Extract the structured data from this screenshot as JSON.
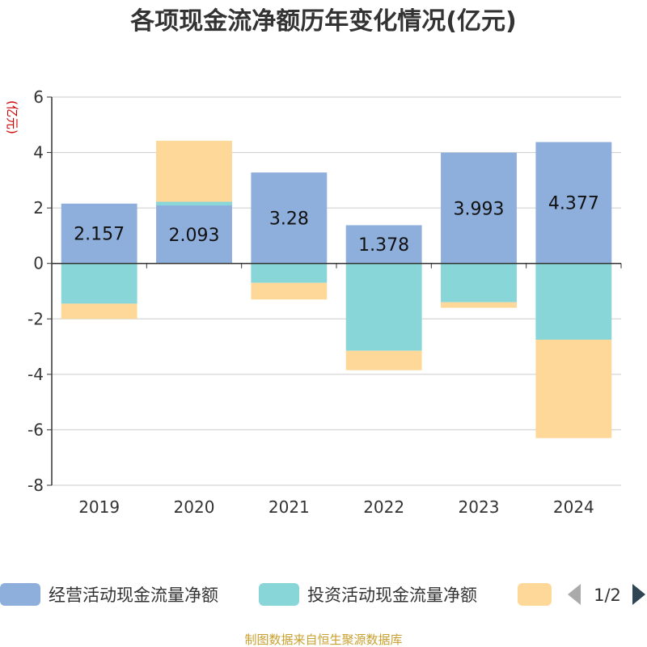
{
  "chart_data": {
    "type": "bar",
    "stacked": true,
    "title": "各项现金流净额历年变化情况(亿元)",
    "ylabel": "(亿元)",
    "xlabel": "",
    "categories": [
      "2019",
      "2020",
      "2021",
      "2022",
      "2023",
      "2024"
    ],
    "ylim": [
      -8,
      6
    ],
    "yticks": [
      6,
      4,
      2,
      0,
      -2,
      -4,
      -6,
      -8
    ],
    "grid": true,
    "series": [
      {
        "name": "经营活动现金流量净额",
        "color": "#8eaedb",
        "values": [
          2.157,
          2.093,
          3.28,
          1.378,
          3.993,
          4.377
        ],
        "labels": [
          "2.157",
          "2.093",
          "3.28",
          "1.378",
          "3.993",
          "4.377"
        ]
      },
      {
        "name": "投资活动现金流量净额",
        "color": "#88d6d8",
        "values": [
          -1.45,
          0.13,
          -0.7,
          -3.15,
          -1.4,
          -2.75
        ]
      },
      {
        "name": "",
        "color": "#fed898",
        "values": [
          -0.55,
          2.2,
          -0.6,
          -0.7,
          -0.2,
          -3.55
        ]
      }
    ],
    "legend_position": "bottom",
    "legend_page": "1/2"
  },
  "source": "制图数据来自恒生聚源数据库",
  "colors": {
    "title": "#333333",
    "ylabel": "#cc0000",
    "source": "#c8a030",
    "axis": "#333333",
    "grid": "#cccccc",
    "pager_active": "#2f4554",
    "pager_inactive": "#aaaaaa"
  }
}
